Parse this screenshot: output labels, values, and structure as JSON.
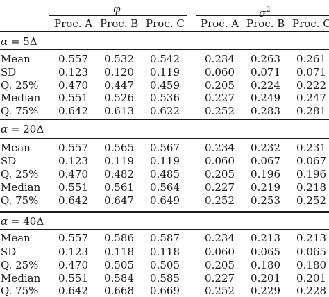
{
  "header": {
    "groups": [
      {
        "symbol": "φ",
        "sup": ""
      },
      {
        "symbol": "σ",
        "sup": "2"
      }
    ],
    "columns": [
      "Proc. A",
      "Proc. B",
      "Proc. C",
      "Proc. A",
      "Proc. B",
      "Proc. C"
    ]
  },
  "blocks": [
    {
      "label_var": "α",
      "label_eq": " = ",
      "label_val": "5Δ",
      "rows": [
        {
          "stat": "Mean",
          "values": [
            "0.557",
            "0.532",
            "0.542",
            "0.234",
            "0.263",
            "0.261"
          ]
        },
        {
          "stat": "SD",
          "values": [
            "0.123",
            "0.120",
            "0.119",
            "0.060",
            "0.071",
            "0.071"
          ]
        },
        {
          "stat": "Q. 25%",
          "values": [
            "0.470",
            "0.447",
            "0.459",
            "0.205",
            "0.224",
            "0.222"
          ]
        },
        {
          "stat": "Median",
          "values": [
            "0.551",
            "0.526",
            "0.536",
            "0.227",
            "0.249",
            "0.247"
          ]
        },
        {
          "stat": "Q. 75%",
          "values": [
            "0.642",
            "0.613",
            "0.622",
            "0.252",
            "0.283",
            "0.281"
          ]
        }
      ]
    },
    {
      "label_var": "α",
      "label_eq": " = ",
      "label_val": "20Δ",
      "rows": [
        {
          "stat": "Mean",
          "values": [
            "0.557",
            "0.565",
            "0.567",
            "0.234",
            "0.232",
            "0.231"
          ]
        },
        {
          "stat": "SD",
          "values": [
            "0.123",
            "0.119",
            "0.119",
            "0.060",
            "0.067",
            "0.067"
          ]
        },
        {
          "stat": "Q. 25%",
          "values": [
            "0.470",
            "0.482",
            "0.485",
            "0.205",
            "0.196",
            "0.196"
          ]
        },
        {
          "stat": "Median",
          "values": [
            "0.551",
            "0.561",
            "0.564",
            "0.227",
            "0.219",
            "0.218"
          ]
        },
        {
          "stat": "Q. 75%",
          "values": [
            "0.642",
            "0.647",
            "0.649",
            "0.252",
            "0.253",
            "0.252"
          ]
        }
      ]
    },
    {
      "label_var": "α",
      "label_eq": " = ",
      "label_val": "40Δ",
      "rows": [
        {
          "stat": "Mean",
          "values": [
            "0.557",
            "0.586",
            "0.587",
            "0.234",
            "0.213",
            "0.213"
          ]
        },
        {
          "stat": "SD",
          "values": [
            "0.123",
            "0.118",
            "0.118",
            "0.060",
            "0.065",
            "0.065"
          ]
        },
        {
          "stat": "Q. 25%",
          "values": [
            "0.470",
            "0.505",
            "0.505",
            "0.205",
            "0.180",
            "0.180"
          ]
        },
        {
          "stat": "Median",
          "values": [
            "0.551",
            "0.584",
            "0.585",
            "0.227",
            "0.201",
            "0.201"
          ]
        },
        {
          "stat": "Q. 75%",
          "values": [
            "0.642",
            "0.668",
            "0.669",
            "0.252",
            "0.229",
            "0.228"
          ]
        }
      ]
    }
  ]
}
